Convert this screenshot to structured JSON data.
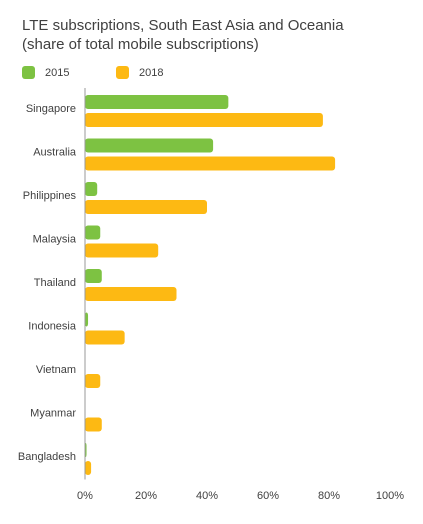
{
  "title_lines": [
    "LTE subscriptions, South East Asia and Oceania",
    "(share of total mobile subscriptions)"
  ],
  "legend": [
    {
      "label": "2015",
      "color": "#7DC242"
    },
    {
      "label": "2018",
      "color": "#FDB913"
    }
  ],
  "chart_data": {
    "type": "bar",
    "orientation": "horizontal",
    "title": "LTE subscriptions, South East Asia and Oceania (share of total mobile subscriptions)",
    "categories": [
      "Singapore",
      "Australia",
      "Philippines",
      "Malaysia",
      "Thailand",
      "Indonesia",
      "Vietnam",
      "Myanmar",
      "Bangladesh"
    ],
    "series": [
      {
        "name": "2015",
        "color": "#7DC242",
        "values": [
          47,
          42,
          4,
          5,
          5.5,
          1,
          0,
          0,
          0.5
        ]
      },
      {
        "name": "2018",
        "color": "#FDB913",
        "values": [
          78,
          82,
          40,
          24,
          30,
          13,
          5,
          5.5,
          2
        ]
      }
    ],
    "xlim": [
      0,
      100
    ],
    "xticks": [
      0,
      20,
      40,
      60,
      80,
      100
    ],
    "xtick_labels": [
      "0%",
      "20%",
      "40%",
      "60%",
      "80%",
      "100%"
    ],
    "grid": false,
    "legend_position": "top-left"
  }
}
